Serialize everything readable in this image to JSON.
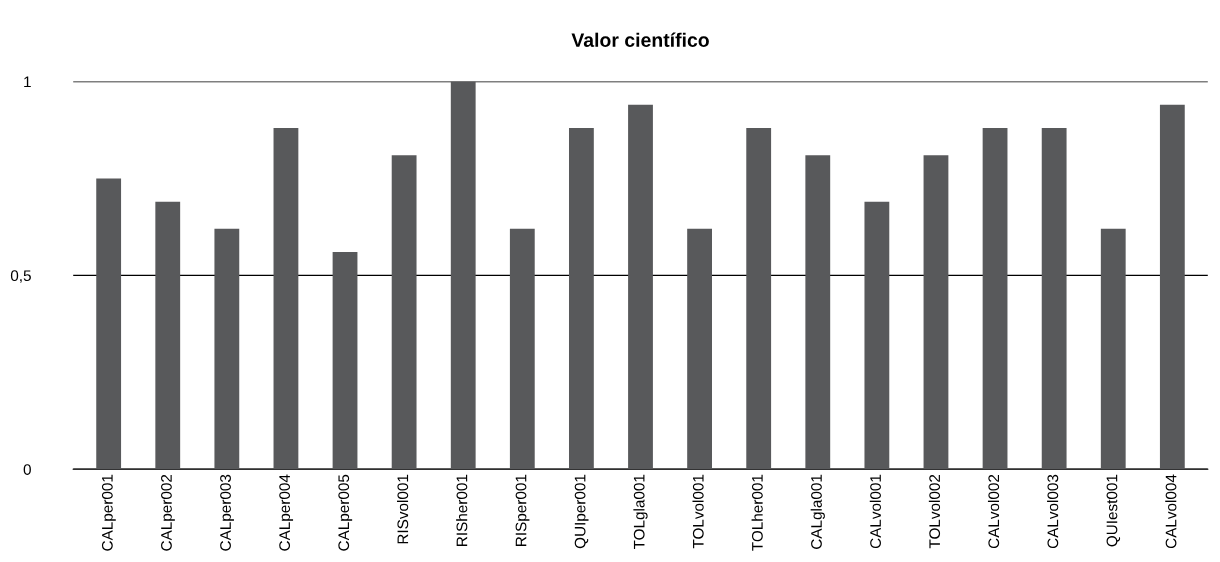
{
  "chart_data": {
    "type": "bar",
    "title": "Valor científico",
    "categories": [
      "CALper001",
      "CALper002",
      "CALper003",
      "CALper004",
      "CALper005",
      "RISvol001",
      "RISher001",
      "RISper001",
      "QUIper001",
      "TOLgla001",
      "TOLvol001",
      "TOLher001",
      "CALgla001",
      "CALvol001",
      "TOLvol002",
      "CALvol002",
      "CALvol003",
      "QUIest001",
      "CALvol004"
    ],
    "values": [
      0.75,
      0.69,
      0.62,
      0.88,
      0.56,
      0.81,
      1,
      0.62,
      0.88,
      0.94,
      0.62,
      0.88,
      0.81,
      0.69,
      0.81,
      0.88,
      0.88,
      0.62,
      0.94
    ],
    "color": "#58595b",
    "ylim": [
      0,
      1
    ],
    "yticks": [
      0,
      {
        "value": 0.5,
        "label": "0,5"
      },
      1
    ],
    "grid": "y"
  }
}
